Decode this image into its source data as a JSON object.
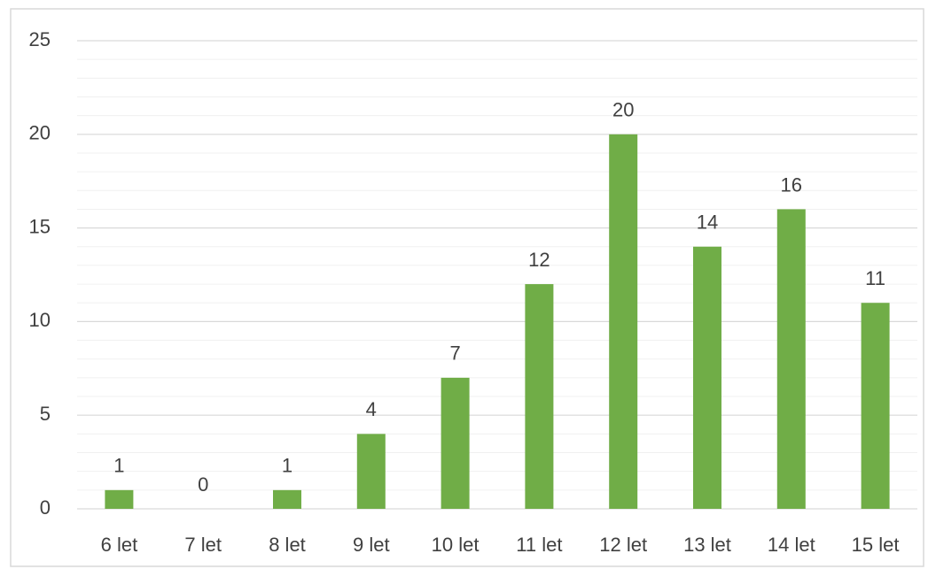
{
  "chart_data": {
    "type": "bar",
    "categories": [
      "6 let",
      "7 let",
      "8 let",
      "9 let",
      "10 let",
      "11 let",
      "12 let",
      "13 let",
      "14 let",
      "15 let"
    ],
    "values": [
      1,
      0,
      1,
      4,
      7,
      12,
      20,
      14,
      16,
      11
    ],
    "color": "#70ad47",
    "ylim": [
      0,
      25
    ],
    "yticks": [
      0,
      5,
      10,
      15,
      20,
      25
    ],
    "grid": true,
    "minor_grid": true,
    "data_labels": true
  }
}
